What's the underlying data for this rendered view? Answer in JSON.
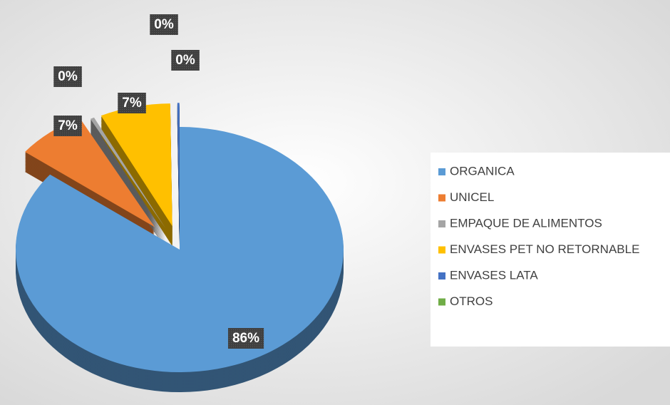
{
  "chart_data": {
    "type": "pie",
    "categories": [
      "ORGANICA",
      "UNICEL",
      "EMPAQUE DE ALIMENTOS",
      "ENVASES PET NO RETORNABLE",
      "ENVASES LATA",
      "OTROS"
    ],
    "values": [
      86,
      7,
      0.4,
      7,
      0.2,
      0
    ],
    "value_labels": [
      "86%",
      "7%",
      "0%",
      "7%",
      "0%",
      "0%"
    ],
    "colors": [
      "#5b9bd5",
      "#ed7d31",
      "#a5a5a5",
      "#ffc000",
      "#4472c4",
      "#70ad47"
    ],
    "legend": "right"
  }
}
